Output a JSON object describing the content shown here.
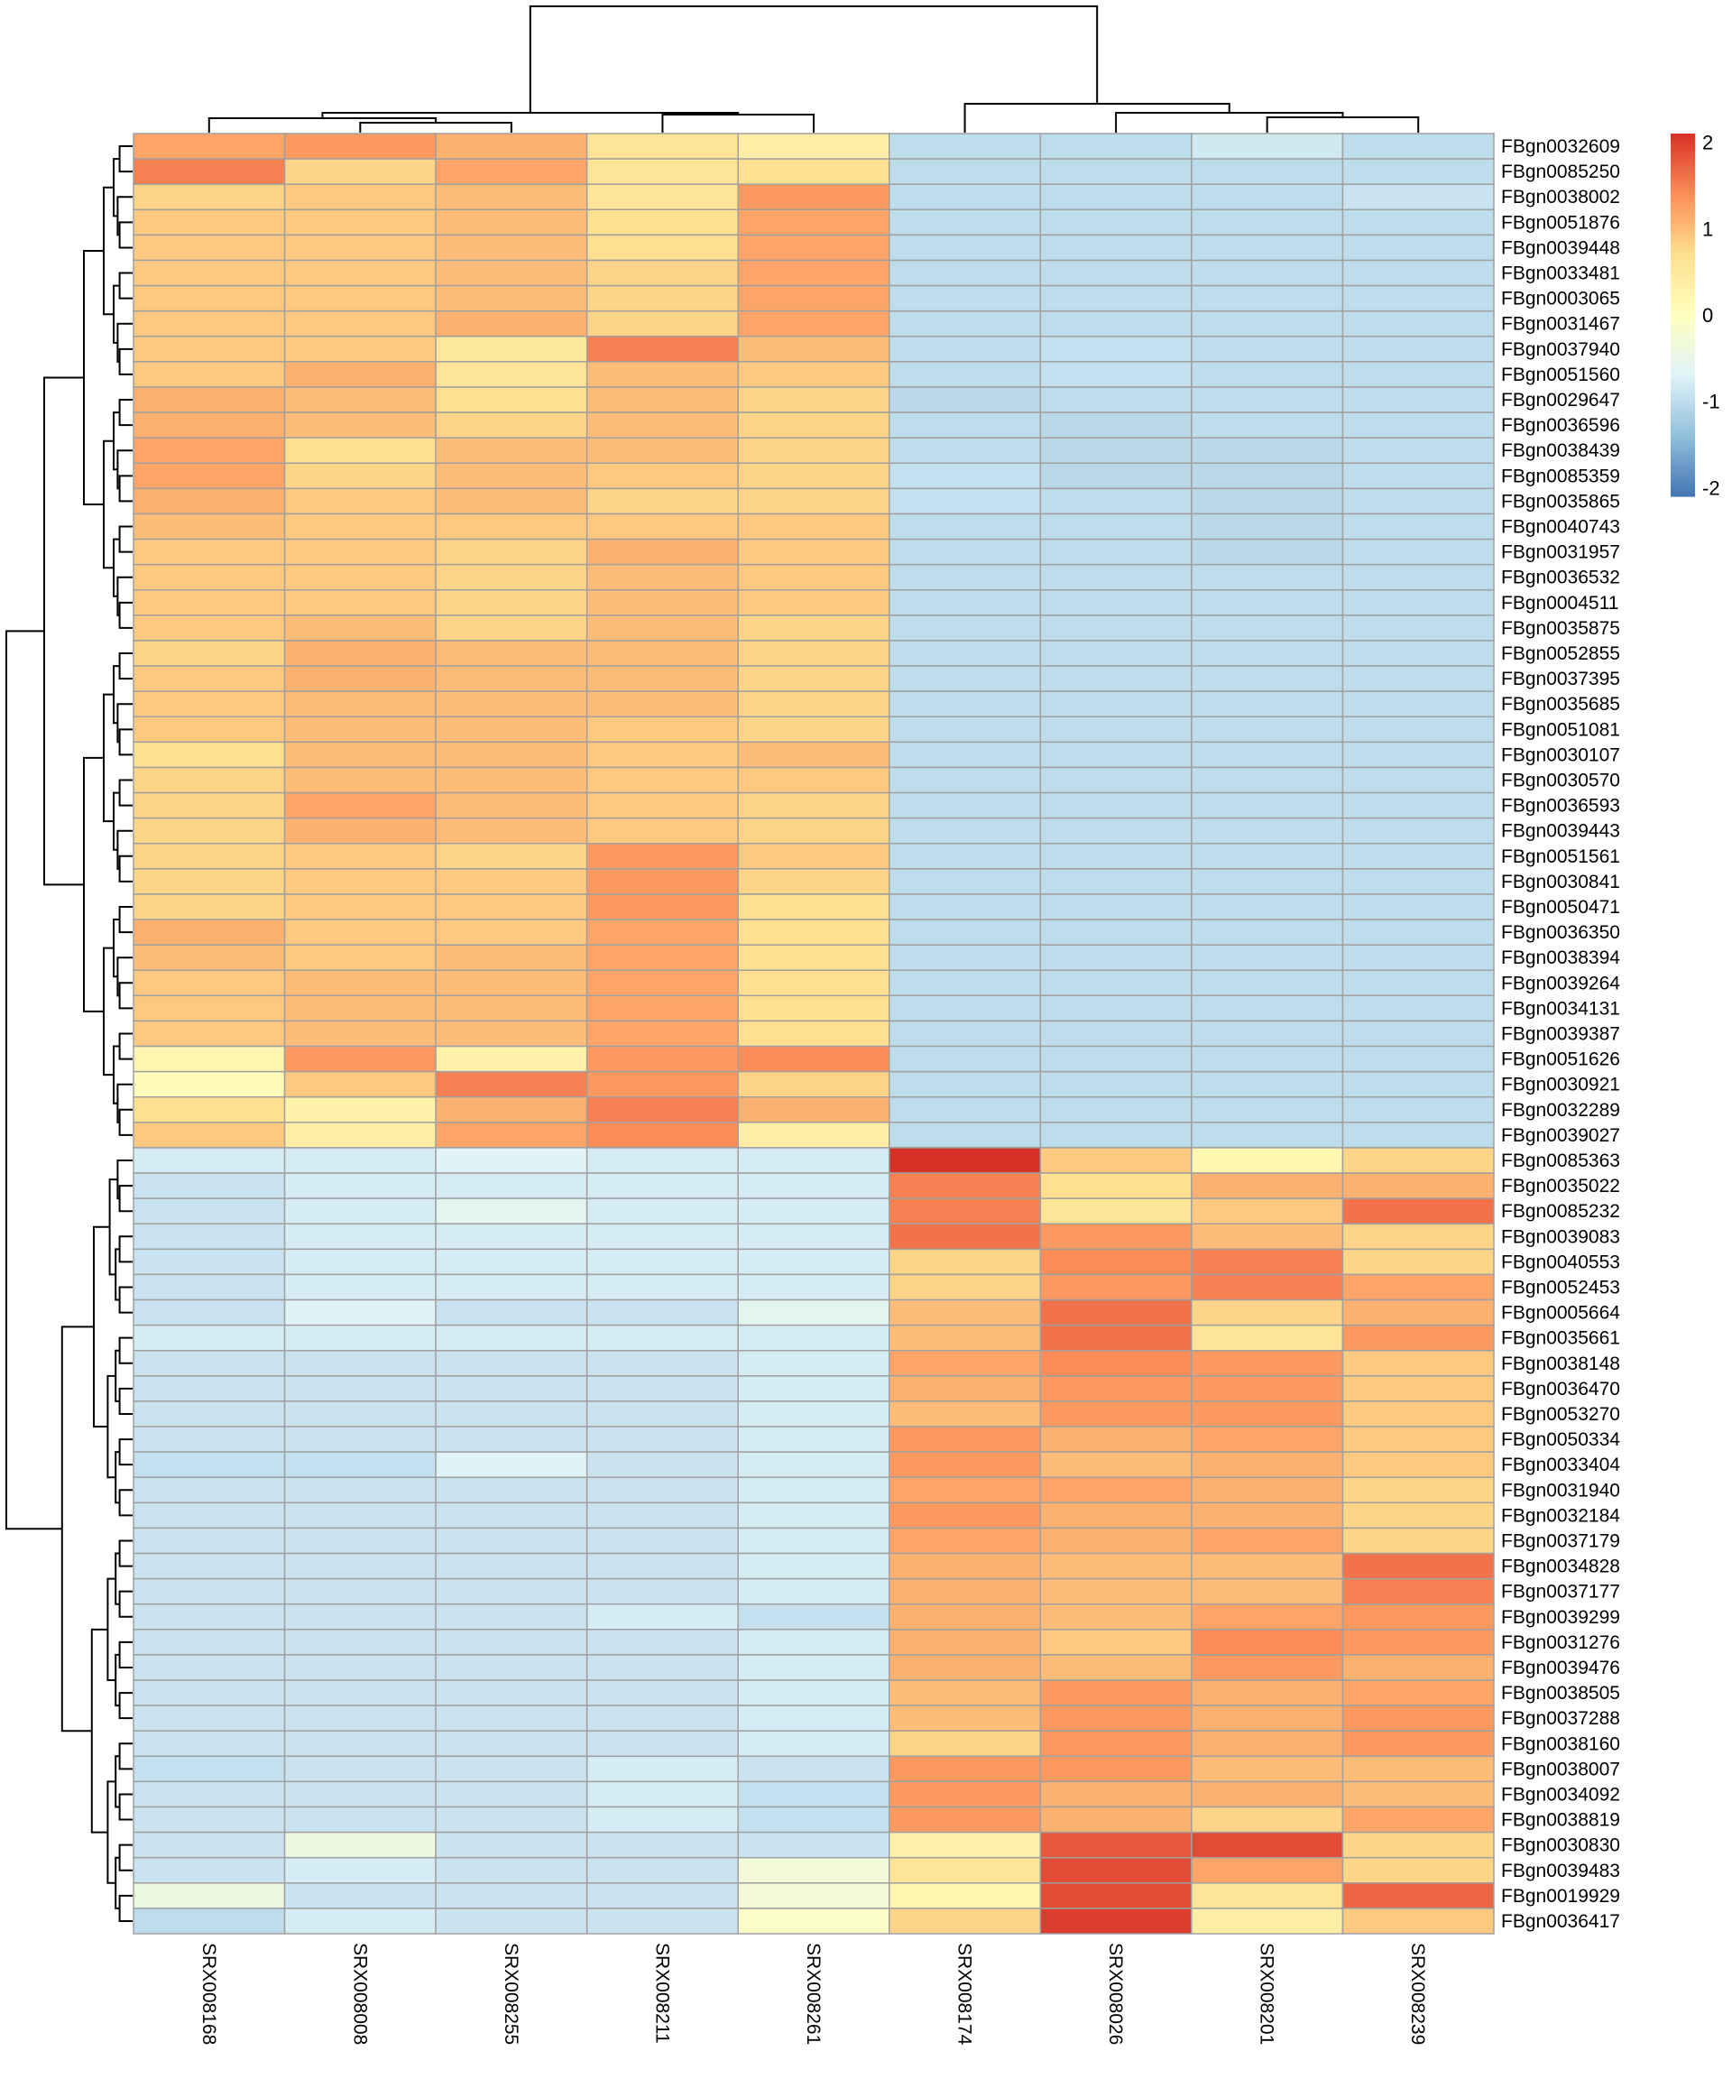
{
  "chart_data": {
    "type": "heatmap",
    "title": "",
    "columns": [
      "SRX008168",
      "SRX008008",
      "SRX008255",
      "SRX008211",
      "SRX008261",
      "SRX008174",
      "SRX008026",
      "SRX008201",
      "SRX008239"
    ],
    "rows": [
      "FBgn0032609",
      "FBgn0085250",
      "FBgn0038002",
      "FBgn0051876",
      "FBgn0039448",
      "FBgn0033481",
      "FBgn0003065",
      "FBgn0031467",
      "FBgn0037940",
      "FBgn0051560",
      "FBgn0029647",
      "FBgn0036596",
      "FBgn0038439",
      "FBgn0085359",
      "FBgn0035865",
      "FBgn0040743",
      "FBgn0031957",
      "FBgn0036532",
      "FBgn0004511",
      "FBgn0035875",
      "FBgn0052855",
      "FBgn0037395",
      "FBgn0035685",
      "FBgn0051081",
      "FBgn0030107",
      "FBgn0030570",
      "FBgn0036593",
      "FBgn0039443",
      "FBgn0051561",
      "FBgn0030841",
      "FBgn0050471",
      "FBgn0036350",
      "FBgn0038394",
      "FBgn0039264",
      "FBgn0034131",
      "FBgn0039387",
      "FBgn0051626",
      "FBgn0030921",
      "FBgn0032289",
      "FBgn0039027",
      "FBgn0085363",
      "FBgn0035022",
      "FBgn0085232",
      "FBgn0039083",
      "FBgn0040553",
      "FBgn0052453",
      "FBgn0005664",
      "FBgn0035661",
      "FBgn0038148",
      "FBgn0036470",
      "FBgn0053270",
      "FBgn0050334",
      "FBgn0033404",
      "FBgn0031940",
      "FBgn0032184",
      "FBgn0037179",
      "FBgn0034828",
      "FBgn0037177",
      "FBgn0039299",
      "FBgn0031276",
      "FBgn0039476",
      "FBgn0038505",
      "FBgn0037288",
      "FBgn0038160",
      "FBgn0038007",
      "FBgn0034092",
      "FBgn0038819",
      "FBgn0030830",
      "FBgn0039483",
      "FBgn0019929",
      "FBgn0036417"
    ],
    "values": [
      [
        1.2,
        1.3,
        1.1,
        0.6,
        0.4,
        -1.0,
        -1.0,
        -0.85,
        -1.0
      ],
      [
        1.5,
        0.8,
        1.2,
        0.6,
        0.7,
        -1.0,
        -1.0,
        -1.0,
        -1.0
      ],
      [
        0.8,
        0.9,
        1.0,
        0.6,
        1.3,
        -1.0,
        -1.0,
        -1.0,
        -0.9
      ],
      [
        0.9,
        0.9,
        1.0,
        0.7,
        1.2,
        -1.0,
        -1.0,
        -1.0,
        -1.0
      ],
      [
        0.9,
        0.9,
        1.0,
        0.7,
        1.2,
        -1.0,
        -1.0,
        -1.0,
        -1.0
      ],
      [
        0.9,
        0.9,
        1.0,
        0.8,
        1.2,
        -1.0,
        -1.0,
        -1.0,
        -1.0
      ],
      [
        0.9,
        0.9,
        1.0,
        0.8,
        1.2,
        -1.0,
        -1.0,
        -1.0,
        -1.0
      ],
      [
        0.9,
        0.9,
        1.1,
        0.8,
        1.2,
        -1.0,
        -1.0,
        -1.0,
        -1.0
      ],
      [
        0.9,
        0.9,
        0.5,
        1.5,
        1.0,
        -1.0,
        -0.95,
        -1.0,
        -1.0
      ],
      [
        0.9,
        1.1,
        0.6,
        1.0,
        0.9,
        -1.0,
        -0.95,
        -1.0,
        -1.0
      ],
      [
        1.1,
        1.0,
        0.7,
        1.0,
        0.8,
        -1.05,
        -1.0,
        -1.0,
        -1.0
      ],
      [
        1.1,
        1.0,
        0.8,
        1.0,
        0.8,
        -1.0,
        -1.05,
        -1.0,
        -1.0
      ],
      [
        1.2,
        0.7,
        1.0,
        1.0,
        0.8,
        -1.0,
        -1.05,
        -1.05,
        -1.0
      ],
      [
        1.2,
        0.8,
        1.0,
        0.9,
        0.8,
        -0.95,
        -1.05,
        -1.05,
        -1.0
      ],
      [
        1.1,
        0.9,
        1.0,
        0.8,
        0.8,
        -0.95,
        -1.0,
        -1.05,
        -1.0
      ],
      [
        1.0,
        0.9,
        0.9,
        0.9,
        0.9,
        -1.0,
        -1.0,
        -1.05,
        -1.0
      ],
      [
        0.9,
        0.9,
        0.8,
        1.1,
        0.9,
        -1.0,
        -1.0,
        -1.05,
        -1.0
      ],
      [
        0.9,
        0.9,
        0.8,
        1.0,
        0.9,
        -1.0,
        -1.0,
        -1.0,
        -1.0
      ],
      [
        0.9,
        0.9,
        0.8,
        1.0,
        0.9,
        -1.0,
        -1.0,
        -1.0,
        -1.0
      ],
      [
        0.9,
        1.0,
        0.8,
        1.0,
        0.8,
        -1.0,
        -1.0,
        -1.0,
        -1.0
      ],
      [
        0.8,
        1.1,
        1.0,
        1.0,
        0.8,
        -1.0,
        -1.0,
        -1.0,
        -1.0
      ],
      [
        0.9,
        1.1,
        1.0,
        1.0,
        0.8,
        -1.0,
        -1.0,
        -1.0,
        -1.0
      ],
      [
        0.9,
        1.0,
        1.0,
        1.0,
        0.8,
        -1.0,
        -1.0,
        -1.0,
        -1.0
      ],
      [
        0.9,
        1.0,
        1.0,
        0.9,
        0.8,
        -1.0,
        -1.0,
        -1.0,
        -1.0
      ],
      [
        0.7,
        1.0,
        1.0,
        0.9,
        1.0,
        -1.0,
        -1.0,
        -1.0,
        -1.0
      ],
      [
        0.8,
        1.0,
        1.0,
        0.9,
        0.9,
        -1.0,
        -1.0,
        -1.0,
        -1.0
      ],
      [
        0.8,
        1.2,
        1.0,
        0.9,
        0.8,
        -1.0,
        -1.0,
        -1.0,
        -1.0
      ],
      [
        0.8,
        1.1,
        1.0,
        0.9,
        0.8,
        -1.0,
        -1.0,
        -1.0,
        -1.0
      ],
      [
        0.8,
        0.9,
        0.8,
        1.3,
        0.9,
        -1.0,
        -1.0,
        -1.0,
        -1.0
      ],
      [
        0.8,
        0.9,
        0.9,
        1.3,
        0.8,
        -1.0,
        -1.0,
        -1.0,
        -1.0
      ],
      [
        0.8,
        0.9,
        0.9,
        1.3,
        0.7,
        -1.0,
        -1.0,
        -1.0,
        -1.0
      ],
      [
        1.1,
        0.9,
        0.9,
        1.2,
        0.7,
        -1.0,
        -1.0,
        -1.0,
        -1.0
      ],
      [
        1.0,
        0.9,
        1.0,
        1.2,
        0.7,
        -1.0,
        -1.0,
        -1.0,
        -1.0
      ],
      [
        0.9,
        1.0,
        1.0,
        1.2,
        0.7,
        -1.0,
        -1.0,
        -1.0,
        -1.0
      ],
      [
        0.9,
        1.0,
        1.0,
        1.2,
        0.7,
        -1.0,
        -1.0,
        -1.0,
        -1.0
      ],
      [
        0.9,
        1.0,
        1.0,
        1.2,
        0.7,
        -1.0,
        -1.0,
        -1.0,
        -1.0
      ],
      [
        0.2,
        1.3,
        0.3,
        1.3,
        1.4,
        -1.0,
        -1.0,
        -1.0,
        -1.0
      ],
      [
        0.1,
        0.9,
        1.5,
        1.3,
        0.8,
        -1.0,
        -1.0,
        -1.0,
        -1.0
      ],
      [
        0.7,
        0.3,
        1.1,
        1.5,
        1.1,
        -1.0,
        -1.0,
        -1.0,
        -1.0
      ],
      [
        0.9,
        0.4,
        1.2,
        1.4,
        0.4,
        -1.0,
        -1.0,
        -1.0,
        -1.0
      ],
      [
        -0.8,
        -0.8,
        -0.7,
        -0.8,
        -0.8,
        2.1,
        0.9,
        0.2,
        0.8
      ],
      [
        -0.9,
        -0.8,
        -0.8,
        -0.8,
        -0.8,
        1.5,
        0.7,
        1.1,
        1.1
      ],
      [
        -0.9,
        -0.8,
        -0.6,
        -0.8,
        -0.8,
        1.5,
        0.6,
        0.9,
        1.6
      ],
      [
        -0.9,
        -0.8,
        -0.8,
        -0.8,
        -0.8,
        1.6,
        1.3,
        1.0,
        0.8
      ],
      [
        -0.9,
        -0.8,
        -0.8,
        -0.8,
        -0.8,
        0.8,
        1.4,
        1.5,
        0.8
      ],
      [
        -0.9,
        -0.8,
        -0.8,
        -0.8,
        -0.8,
        0.8,
        1.3,
        1.5,
        1.2
      ],
      [
        -0.9,
        -0.7,
        -0.9,
        -0.9,
        -0.6,
        1.0,
        1.6,
        0.8,
        1.1
      ],
      [
        -0.8,
        -0.8,
        -0.8,
        -0.8,
        -0.8,
        1.0,
        1.6,
        0.6,
        1.3
      ],
      [
        -0.9,
        -0.9,
        -0.9,
        -0.9,
        -0.8,
        1.2,
        1.4,
        1.3,
        0.9
      ],
      [
        -0.9,
        -0.9,
        -0.9,
        -0.9,
        -0.8,
        1.1,
        1.3,
        1.3,
        0.9
      ],
      [
        -0.9,
        -0.9,
        -0.9,
        -0.9,
        -0.8,
        1.0,
        1.3,
        1.3,
        0.9
      ],
      [
        -0.9,
        -0.9,
        -0.9,
        -0.9,
        -0.8,
        1.3,
        1.1,
        1.2,
        0.9
      ],
      [
        -0.95,
        -0.95,
        -0.7,
        -0.9,
        -0.8,
        1.3,
        1.0,
        1.1,
        0.9
      ],
      [
        -0.9,
        -0.9,
        -0.9,
        -0.9,
        -0.8,
        1.2,
        1.2,
        1.1,
        0.8
      ],
      [
        -0.9,
        -0.9,
        -0.9,
        -0.9,
        -0.8,
        1.3,
        1.1,
        1.1,
        0.8
      ],
      [
        -0.9,
        -0.9,
        -0.9,
        -0.9,
        -0.8,
        1.2,
        1.1,
        1.2,
        0.8
      ],
      [
        -0.9,
        -0.9,
        -0.9,
        -0.9,
        -0.8,
        1.1,
        1.0,
        1.0,
        1.6
      ],
      [
        -0.9,
        -0.9,
        -0.9,
        -0.9,
        -0.8,
        1.1,
        1.0,
        1.0,
        1.5
      ],
      [
        -0.9,
        -0.9,
        -0.9,
        -0.8,
        -0.95,
        1.1,
        1.0,
        1.2,
        1.3
      ],
      [
        -0.9,
        -0.9,
        -0.9,
        -0.9,
        -0.8,
        1.1,
        0.9,
        1.4,
        1.3
      ],
      [
        -0.9,
        -0.9,
        -0.9,
        -0.9,
        -0.8,
        1.1,
        1.0,
        1.3,
        1.1
      ],
      [
        -0.9,
        -0.9,
        -0.9,
        -0.9,
        -0.8,
        1.0,
        1.3,
        1.1,
        1.2
      ],
      [
        -0.9,
        -0.9,
        -0.9,
        -0.9,
        -0.8,
        1.0,
        1.3,
        1.1,
        1.3
      ],
      [
        -0.9,
        -0.9,
        -0.9,
        -0.9,
        -0.8,
        0.8,
        1.3,
        1.1,
        1.3
      ],
      [
        -0.95,
        -0.9,
        -0.9,
        -0.8,
        -0.9,
        1.3,
        1.3,
        1.0,
        1.0
      ],
      [
        -0.9,
        -0.9,
        -0.9,
        -0.8,
        -0.95,
        1.3,
        1.1,
        1.1,
        1.0
      ],
      [
        -0.9,
        -0.9,
        -0.9,
        -0.8,
        -0.95,
        1.3,
        1.1,
        0.8,
        1.2
      ],
      [
        -0.9,
        -0.4,
        -0.9,
        -0.9,
        -0.9,
        0.3,
        1.8,
        1.9,
        0.8
      ],
      [
        -0.9,
        -0.8,
        -0.9,
        -0.9,
        -0.3,
        0.6,
        1.9,
        1.2,
        0.8
      ],
      [
        -0.4,
        -0.9,
        -0.9,
        -0.9,
        -0.3,
        0.2,
        1.9,
        0.6,
        1.7
      ],
      [
        -1.0,
        -0.8,
        -0.9,
        -0.9,
        -0.1,
        0.8,
        2.0,
        0.4,
        0.9
      ]
    ],
    "color_scale": {
      "min": -2.1,
      "max": 2.1,
      "colors": [
        "#4575B4",
        "#91BFDB",
        "#E0F3F8",
        "#FFFFBF",
        "#FEE090",
        "#FC8D59",
        "#D73027"
      ]
    },
    "legend_ticks": [
      "2",
      "1",
      "0",
      "-1",
      "-2"
    ],
    "legend_tick_values": [
      2,
      1,
      0,
      -1,
      -2
    ],
    "legend": "right",
    "cell_border_color": "#A0A0A0",
    "row_clusters": 2,
    "column_clusters": 2
  }
}
